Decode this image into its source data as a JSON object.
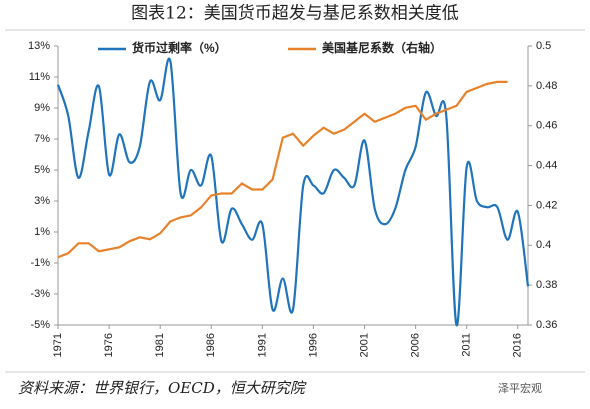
{
  "chart_data": {
    "type": "line",
    "title": "图表12：美国货币超发与基尼系数相关度低",
    "source": "资料来源：世界银行，OECD，恒大研究院",
    "watermark": "泽平宏观",
    "x": [
      1971,
      1972,
      1973,
      1974,
      1975,
      1976,
      1977,
      1978,
      1979,
      1980,
      1981,
      1982,
      1983,
      1984,
      1985,
      1986,
      1987,
      1988,
      1989,
      1990,
      1991,
      1992,
      1993,
      1994,
      1995,
      1996,
      1997,
      1998,
      1999,
      2000,
      2001,
      2002,
      2003,
      2004,
      2005,
      2006,
      2007,
      2008,
      2009,
      2010,
      2011,
      2012,
      2013,
      2014,
      2015,
      2016,
      2017
    ],
    "xlim": [
      1971,
      2017
    ],
    "xticks": [
      1971,
      1976,
      1981,
      1986,
      1991,
      1996,
      2001,
      2006,
      2011,
      2016
    ],
    "ylim": [
      -5,
      13
    ],
    "yticks": [
      {
        "value": -5,
        "label": "-5%"
      },
      {
        "value": -3,
        "label": "-3%"
      },
      {
        "value": -1,
        "label": "-1%"
      },
      {
        "value": 1,
        "label": "1%"
      },
      {
        "value": 3,
        "label": "3%"
      },
      {
        "value": 5,
        "label": "5%"
      },
      {
        "value": 7,
        "label": "7%"
      },
      {
        "value": 9,
        "label": "9%"
      },
      {
        "value": 11,
        "label": "11%"
      },
      {
        "value": 13,
        "label": "13%"
      }
    ],
    "y2lim": [
      0.36,
      0.5
    ],
    "y2ticks": [
      0.36,
      0.38,
      0.4,
      0.42,
      0.44,
      0.46,
      0.48,
      0.5
    ],
    "series": [
      {
        "name": "货币过剩率（%）",
        "color": "#1f74bb",
        "smooth": true,
        "values": [
          10.5,
          8.5,
          4.5,
          7.5,
          10.4,
          4.7,
          7.3,
          5.5,
          6.5,
          10.7,
          9.5,
          12.0,
          3.5,
          5.0,
          4.0,
          5.9,
          0.4,
          2.5,
          1.5,
          0.5,
          1.5,
          -4.0,
          -2.0,
          -4.0,
          4.0,
          4.0,
          3.5,
          5.0,
          4.5,
          4.0,
          6.9,
          2.5,
          1.5,
          2.5,
          5.0,
          6.5,
          10.0,
          8.5,
          8.5,
          -5.0,
          5.2,
          3.0,
          2.6,
          2.6,
          0.5,
          2.3,
          -2.5
        ]
      },
      {
        "name": "美国基尼系数（右轴）",
        "color": "#e8822a",
        "axis": "y2",
        "smooth": false,
        "values": [
          0.394,
          0.396,
          0.401,
          0.401,
          0.397,
          0.398,
          0.399,
          0.402,
          0.404,
          0.403,
          0.406,
          0.412,
          0.414,
          0.415,
          0.419,
          0.425,
          0.426,
          0.426,
          0.431,
          0.428,
          0.428,
          0.433,
          0.454,
          0.456,
          0.45,
          0.455,
          0.459,
          0.456,
          0.458,
          0.462,
          0.466,
          0.462,
          0.464,
          0.466,
          0.469,
          0.47,
          0.463,
          0.466,
          0.468,
          0.47,
          0.477,
          0.479,
          0.481,
          0.482,
          0.482,
          null,
          null
        ]
      }
    ]
  }
}
